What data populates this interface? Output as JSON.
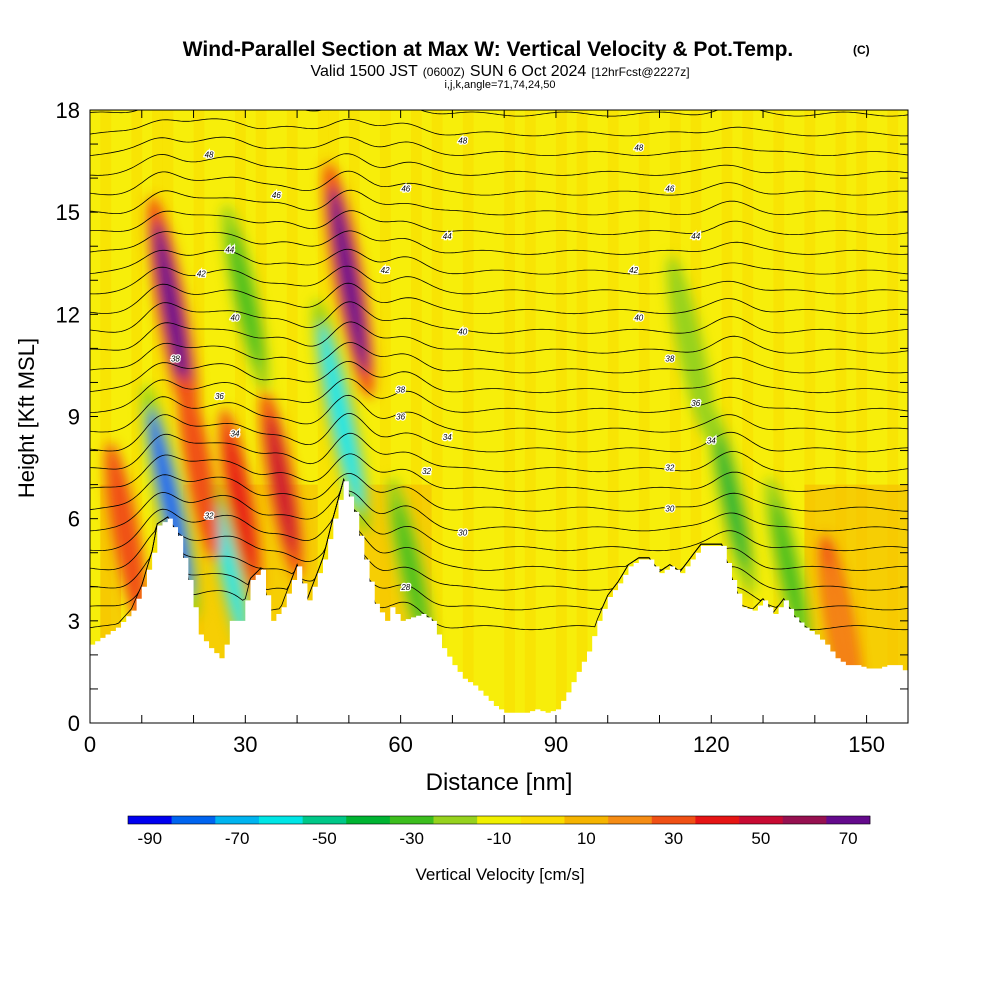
{
  "chart_data": {
    "type": "heatmap",
    "title": "Wind-Parallel Section at Max W: Vertical Velocity & Pot.Temp.",
    "title_units": "(C)",
    "subtitle": {
      "prefix": "Valid 1500 JST",
      "utc": "(0600Z)",
      "date": "SUN 6 Oct 2024",
      "forecast": "[12hrFcst@2227z]"
    },
    "params": "i,j,k,angle=71,74,24,50",
    "xlabel": "Distance [nm]",
    "ylabel": "Height [Kft MSL]",
    "xlim": [
      0,
      158
    ],
    "ylim": [
      0,
      18
    ],
    "x_ticks": [
      "0",
      "30",
      "60",
      "90",
      "120",
      "150"
    ],
    "y_ticks": [
      "0",
      "3",
      "6",
      "9",
      "12",
      "15",
      "18"
    ],
    "colorbar": {
      "label": "Vertical Velocity [cm/s]",
      "ticks": [
        "-90",
        "-70",
        "-50",
        "-30",
        "-10",
        "10",
        "30",
        "50",
        "70"
      ],
      "colors": [
        "#0000f0",
        "#0064f0",
        "#00b4f0",
        "#00e6e6",
        "#00c888",
        "#00b432",
        "#3cbe1e",
        "#96d21e",
        "#f0f000",
        "#fadc00",
        "#f5b400",
        "#f58c14",
        "#f05014",
        "#e61414",
        "#c80a32",
        "#961050",
        "#640a8c"
      ]
    },
    "terrain_profile": {
      "x": [
        0,
        5,
        8,
        10,
        12,
        13,
        15,
        17,
        19,
        21,
        23,
        25,
        26,
        27,
        29,
        31,
        33,
        35,
        37,
        40,
        42,
        45,
        47,
        49,
        51,
        53,
        55,
        57,
        58,
        60,
        62,
        64,
        66,
        68,
        70,
        72,
        74,
        76,
        78,
        80,
        82,
        84,
        86,
        88,
        90,
        92,
        94,
        96,
        98,
        100,
        102,
        104,
        106,
        108,
        110,
        112,
        114,
        116,
        118,
        120,
        122,
        124,
        126,
        128,
        130,
        132,
        134,
        136,
        138,
        140,
        142,
        144,
        146,
        148,
        150,
        152,
        154,
        156,
        158
      ],
      "y": [
        2.3,
        2.8,
        3.3,
        4.0,
        5.0,
        5.8,
        6.0,
        5.5,
        4.2,
        2.6,
        2.2,
        1.9,
        2.3,
        3.0,
        3.0,
        4.2,
        4.5,
        3.0,
        3.4,
        4.6,
        3.6,
        4.8,
        6.0,
        7.1,
        6.2,
        4.8,
        3.5,
        3.0,
        3.4,
        3.0,
        3.1,
        3.2,
        3.0,
        2.2,
        1.7,
        1.3,
        1.1,
        0.8,
        0.5,
        0.3,
        0.3,
        0.3,
        0.4,
        0.3,
        0.4,
        0.9,
        1.5,
        2.1,
        3.0,
        3.7,
        4.1,
        4.6,
        4.8,
        4.8,
        4.4,
        4.6,
        4.4,
        4.8,
        5.2,
        5.2,
        5.2,
        4.2,
        3.4,
        3.3,
        3.6,
        3.2,
        3.6,
        3.1,
        2.8,
        2.6,
        2.3,
        1.9,
        1.7,
        1.7,
        1.6,
        1.6,
        1.7,
        1.7,
        1.4
      ]
    },
    "updrafts": [
      {
        "x": 16,
        "y": 12.0,
        "value": 75
      },
      {
        "x": 50,
        "y": 13.0,
        "value": 75
      },
      {
        "x": 37,
        "y": 7.0,
        "value": 50
      },
      {
        "x": 29,
        "y": 6.5,
        "value": 40
      },
      {
        "x": 21,
        "y": 7.5,
        "value": 30
      },
      {
        "x": 7,
        "y": 5.5,
        "value": 30
      },
      {
        "x": 145,
        "y": 2.8,
        "value": 25
      }
    ],
    "downdrafts": [
      {
        "x": 15.5,
        "y": 6.5,
        "value": -75
      },
      {
        "x": 48.5,
        "y": 9.0,
        "value": -60
      },
      {
        "x": 27,
        "y": 4.5,
        "value": -55
      },
      {
        "x": 30,
        "y": 12.5,
        "value": -30
      },
      {
        "x": 62,
        "y": 4.5,
        "value": -30
      },
      {
        "x": 124,
        "y": 6.5,
        "value": -40
      },
      {
        "x": 116,
        "y": 11.0,
        "value": -20
      },
      {
        "x": 135,
        "y": 4.5,
        "value": -25
      }
    ],
    "isentropes": [
      26,
      28,
      30,
      32,
      34,
      36,
      38,
      40,
      42,
      44,
      46,
      48
    ],
    "contour_labels": [
      {
        "text": "48",
        "x": 23,
        "y": 16.7
      },
      {
        "text": "46",
        "x": 36,
        "y": 15.5
      },
      {
        "text": "44",
        "x": 27,
        "y": 13.9
      },
      {
        "text": "42",
        "x": 21.5,
        "y": 13.2
      },
      {
        "text": "40",
        "x": 28,
        "y": 11.9
      },
      {
        "text": "38",
        "x": 16.5,
        "y": 10.7
      },
      {
        "text": "36",
        "x": 25,
        "y": 9.6
      },
      {
        "text": "34",
        "x": 28,
        "y": 8.5
      },
      {
        "text": "32",
        "x": 23,
        "y": 6.1
      },
      {
        "text": "28",
        "x": 61,
        "y": 4.0
      },
      {
        "text": "48",
        "x": 72,
        "y": 17.1
      },
      {
        "text": "46",
        "x": 61,
        "y": 15.7
      },
      {
        "text": "44",
        "x": 69,
        "y": 14.3
      },
      {
        "text": "42",
        "x": 57,
        "y": 13.3
      },
      {
        "text": "40",
        "x": 72,
        "y": 11.5
      },
      {
        "text": "38",
        "x": 60,
        "y": 9.8
      },
      {
        "text": "36",
        "x": 60,
        "y": 9.0
      },
      {
        "text": "34",
        "x": 69,
        "y": 8.4
      },
      {
        "text": "32",
        "x": 65,
        "y": 7.4
      },
      {
        "text": "30",
        "x": 72,
        "y": 5.6
      },
      {
        "text": "48",
        "x": 106,
        "y": 16.9
      },
      {
        "text": "46",
        "x": 112,
        "y": 15.7
      },
      {
        "text": "44",
        "x": 117,
        "y": 14.3
      },
      {
        "text": "42",
        "x": 105,
        "y": 13.3
      },
      {
        "text": "40",
        "x": 106,
        "y": 11.9
      },
      {
        "text": "38",
        "x": 112,
        "y": 10.7
      },
      {
        "text": "36",
        "x": 117,
        "y": 9.4
      },
      {
        "text": "34",
        "x": 120,
        "y": 8.3
      },
      {
        "text": "32",
        "x": 112,
        "y": 7.5
      },
      {
        "text": "30",
        "x": 112,
        "y": 6.3
      }
    ]
  }
}
